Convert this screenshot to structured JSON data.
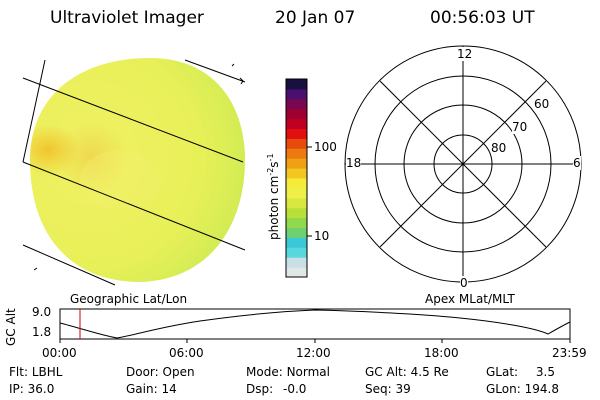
{
  "header": {
    "instrument": "Ultraviolet Imager",
    "date": "20 Jan 07",
    "time": "00:56:03 UT"
  },
  "colorbar": {
    "label": "photon cm",
    "label_sup1": "-2",
    "label_mid": "s",
    "label_sup2": "-1",
    "tick_high": "100",
    "tick_low": "10",
    "colors": [
      "#dfe7e7",
      "#c8e0e4",
      "#58d8dc",
      "#3ac8d8",
      "#6fd070",
      "#90d84c",
      "#b8e038",
      "#d8e840",
      "#eef048",
      "#f4ec3a",
      "#f2c820",
      "#f0a014",
      "#ec7a10",
      "#e84a0c",
      "#e01010",
      "#c00020",
      "#a00030",
      "#7a0850",
      "#4a1070",
      "#1a1040"
    ]
  },
  "polar": {
    "labels": {
      "top": "12",
      "bottom": "0",
      "left": "18",
      "right": "6"
    },
    "rings": [
      "60",
      "70",
      "80"
    ]
  },
  "map_labels": {
    "left": "Geographic Lat/Lon",
    "right": "Apex  MLat/MLT"
  },
  "altitude_plot": {
    "ylabel": "GC Alt",
    "yticks": [
      "9.0",
      "1.8"
    ],
    "xticks": [
      "00:00",
      "06:00",
      "12:00",
      "18:00",
      "23:59"
    ]
  },
  "info": {
    "row1": [
      {
        "label": "Flt:",
        "value": "LBHL"
      },
      {
        "label": "Door:",
        "value": "Open"
      },
      {
        "label": "Mode:",
        "value": "Normal"
      },
      {
        "label": "GC Alt:",
        "value": "4.5 Re"
      },
      {
        "label": "GLat:",
        "value": "3.5"
      }
    ],
    "row2": [
      {
        "label": "IP:",
        "value": "36.0"
      },
      {
        "label": "Gain:",
        "value": "14"
      },
      {
        "label": "Dsp:",
        "value": "-0.0"
      },
      {
        "label": "Seq:",
        "value": "39"
      },
      {
        "label": "GLon:",
        "value": "194.8"
      }
    ]
  }
}
